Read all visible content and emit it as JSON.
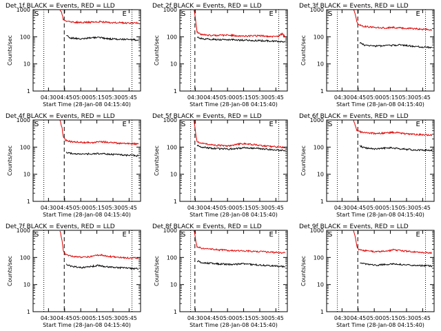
{
  "common": {
    "ylabel": "Counts/sec",
    "xlabel": "Start Time (28-Jan-08 04:15:40)",
    "x_ticks": [
      "04:30",
      "04:45",
      "05:00",
      "05:15",
      "05:30",
      "05:45"
    ],
    "y_ticks": [
      "1",
      "10",
      "100",
      "1000"
    ],
    "marker_start": "S",
    "marker_end": "E",
    "colors": {
      "events": "#000000",
      "lld": "#dd0000",
      "axes": "#000000"
    }
  },
  "chart_data": [
    {
      "type": "line",
      "title": "Det 1f BLACK = Events, RED = LLD",
      "x_unit": "minutes after 04:15:40",
      "xlim": [
        0,
        100
      ],
      "ylim": [
        1,
        1000
      ],
      "yscale": "log",
      "dotted_lines_x": [
        10,
        92
      ],
      "dashed_line_x": [
        29
      ],
      "series": [
        {
          "name": "Events",
          "color": "#000000",
          "x": [
            29,
            31,
            35,
            45,
            60,
            70,
            80,
            90,
            98
          ],
          "y": [
            null,
            110,
            90,
            85,
            95,
            85,
            80,
            80,
            75
          ]
        },
        {
          "name": "LLD",
          "color": "#dd0000",
          "x": [
            25,
            27,
            28,
            30,
            35,
            45,
            55,
            62,
            70,
            80,
            90,
            98
          ],
          "y": [
            1000,
            700,
            450,
            380,
            350,
            340,
            345,
            360,
            340,
            330,
            320,
            330
          ]
        }
      ]
    },
    {
      "type": "line",
      "title": "Det 2f BLACK = Events, RED = LLD",
      "x_unit": "minutes after 04:15:40",
      "xlim": [
        0,
        100
      ],
      "ylim": [
        1,
        1000
      ],
      "yscale": "log",
      "dotted_lines_x": [
        10,
        92
      ],
      "dashed_line_x": [
        14
      ],
      "series": [
        {
          "name": "Events",
          "color": "#000000",
          "x": [
            14,
            16,
            20,
            30,
            45,
            60,
            75,
            85,
            92,
            98
          ],
          "y": [
            null,
            100,
            85,
            80,
            78,
            75,
            72,
            70,
            68,
            65
          ]
        },
        {
          "name": "LLD",
          "color": "#dd0000",
          "x": [
            13,
            14,
            15,
            16,
            20,
            30,
            45,
            60,
            75,
            85,
            92,
            95,
            98
          ],
          "y": [
            1000,
            700,
            300,
            150,
            120,
            110,
            115,
            105,
            110,
            100,
            105,
            130,
            100
          ]
        }
      ]
    },
    {
      "type": "line",
      "title": "Det 3f BLACK = Events, RED = LLD",
      "x_unit": "minutes after 04:15:40",
      "xlim": [
        0,
        100
      ],
      "ylim": [
        1,
        1000
      ],
      "yscale": "log",
      "dotted_lines_x": [
        10,
        92
      ],
      "dashed_line_x": [
        29
      ],
      "series": [
        {
          "name": "Events",
          "color": "#000000",
          "x": [
            29,
            31,
            35,
            45,
            60,
            70,
            80,
            90,
            98
          ],
          "y": [
            null,
            60,
            50,
            45,
            48,
            50,
            45,
            42,
            40
          ]
        },
        {
          "name": "LLD",
          "color": "#dd0000",
          "x": [
            25,
            27,
            28,
            30,
            35,
            45,
            55,
            62,
            70,
            80,
            90,
            98
          ],
          "y": [
            1000,
            600,
            350,
            270,
            240,
            220,
            210,
            220,
            210,
            200,
            190,
            180
          ]
        }
      ]
    },
    {
      "type": "line",
      "title": "Det 4f BLACK = Events, RED = LLD",
      "x_unit": "minutes after 04:15:40",
      "xlim": [
        0,
        100
      ],
      "ylim": [
        1,
        1000
      ],
      "yscale": "log",
      "dotted_lines_x": [
        10,
        92
      ],
      "dashed_line_x": [
        29
      ],
      "series": [
        {
          "name": "Events",
          "color": "#000000",
          "x": [
            29,
            31,
            35,
            45,
            60,
            70,
            80,
            90,
            98
          ],
          "y": [
            null,
            65,
            60,
            55,
            58,
            55,
            52,
            50,
            48
          ]
        },
        {
          "name": "LLD",
          "color": "#dd0000",
          "x": [
            25,
            27,
            28,
            30,
            35,
            45,
            55,
            62,
            70,
            80,
            90,
            98
          ],
          "y": [
            1000,
            500,
            250,
            180,
            160,
            150,
            145,
            160,
            150,
            140,
            135,
            130
          ]
        }
      ]
    },
    {
      "type": "line",
      "title": "Det 5f BLACK = Events, RED = LLD",
      "x_unit": "minutes after 04:15:40",
      "xlim": [
        0,
        100
      ],
      "ylim": [
        1,
        1000
      ],
      "yscale": "log",
      "dotted_lines_x": [
        10,
        92
      ],
      "dashed_line_x": [
        14
      ],
      "series": [
        {
          "name": "Events",
          "color": "#000000",
          "x": [
            14,
            16,
            20,
            30,
            45,
            60,
            75,
            85,
            92,
            98
          ],
          "y": [
            null,
            120,
            100,
            90,
            85,
            95,
            88,
            80,
            78,
            75
          ]
        },
        {
          "name": "LLD",
          "color": "#dd0000",
          "x": [
            13,
            14,
            15,
            16,
            20,
            30,
            45,
            55,
            60,
            75,
            85,
            92,
            98
          ],
          "y": [
            1000,
            600,
            250,
            160,
            140,
            120,
            110,
            130,
            135,
            115,
            105,
            100,
            95
          ]
        }
      ]
    },
    {
      "type": "line",
      "title": "Det 6f BLACK = Events, RED = LLD",
      "x_unit": "minutes after 04:15:40",
      "xlim": [
        0,
        100
      ],
      "ylim": [
        1,
        1000
      ],
      "yscale": "log",
      "dotted_lines_x": [
        10,
        92
      ],
      "dashed_line_x": [
        29
      ],
      "series": [
        {
          "name": "Events",
          "color": "#000000",
          "x": [
            29,
            31,
            35,
            45,
            60,
            70,
            80,
            90,
            98
          ],
          "y": [
            null,
            110,
            95,
            85,
            95,
            85,
            80,
            78,
            75
          ]
        },
        {
          "name": "LLD",
          "color": "#dd0000",
          "x": [
            25,
            27,
            28,
            30,
            35,
            45,
            55,
            62,
            70,
            80,
            90,
            98
          ],
          "y": [
            1000,
            600,
            420,
            380,
            340,
            320,
            330,
            350,
            320,
            300,
            285,
            280
          ]
        }
      ]
    },
    {
      "type": "line",
      "title": "Det 7f BLACK = Events, RED = LLD",
      "x_unit": "minutes after 04:15:40",
      "xlim": [
        0,
        100
      ],
      "ylim": [
        1,
        1000
      ],
      "yscale": "log",
      "dotted_lines_x": [
        10,
        92
      ],
      "dashed_line_x": [
        29
      ],
      "series": [
        {
          "name": "Events",
          "color": "#000000",
          "x": [
            29,
            31,
            35,
            45,
            60,
            70,
            80,
            90,
            98
          ],
          "y": [
            null,
            55,
            48,
            42,
            50,
            45,
            42,
            40,
            38
          ]
        },
        {
          "name": "LLD",
          "color": "#dd0000",
          "x": [
            25,
            27,
            28,
            30,
            35,
            45,
            55,
            62,
            70,
            80,
            90,
            98
          ],
          "y": [
            1000,
            400,
            180,
            130,
            115,
            100,
            110,
            125,
            110,
            100,
            95,
            95
          ]
        }
      ]
    },
    {
      "type": "line",
      "title": "Det 8f BLACK = Events, RED = LLD",
      "x_unit": "minutes after 04:15:40",
      "xlim": [
        0,
        100
      ],
      "ylim": [
        1,
        1000
      ],
      "yscale": "log",
      "dotted_lines_x": [
        10,
        92
      ],
      "dashed_line_x": [
        14
      ],
      "series": [
        {
          "name": "Events",
          "color": "#000000",
          "x": [
            14,
            16,
            20,
            30,
            45,
            60,
            75,
            85,
            92,
            98
          ],
          "y": [
            null,
            75,
            65,
            60,
            55,
            58,
            52,
            50,
            48,
            45
          ]
        },
        {
          "name": "LLD",
          "color": "#dd0000",
          "x": [
            13,
            14,
            15,
            16,
            20,
            30,
            45,
            60,
            75,
            85,
            92,
            98
          ],
          "y": [
            1000,
            700,
            350,
            250,
            220,
            200,
            180,
            175,
            165,
            155,
            150,
            150
          ]
        }
      ]
    },
    {
      "type": "line",
      "title": "Det 9f BLACK = Events, RED = LLD",
      "x_unit": "minutes after 04:15:40",
      "xlim": [
        0,
        100
      ],
      "ylim": [
        1,
        1000
      ],
      "yscale": "log",
      "dotted_lines_x": [
        10,
        92
      ],
      "dashed_line_x": [
        29
      ],
      "series": [
        {
          "name": "Events",
          "color": "#000000",
          "x": [
            29,
            31,
            35,
            45,
            60,
            70,
            80,
            90,
            98
          ],
          "y": [
            null,
            65,
            58,
            52,
            58,
            55,
            52,
            50,
            48
          ]
        },
        {
          "name": "LLD",
          "color": "#dd0000",
          "x": [
            25,
            27,
            28,
            30,
            35,
            45,
            55,
            62,
            70,
            80,
            90,
            98
          ],
          "y": [
            1000,
            500,
            260,
            200,
            180,
            165,
            170,
            190,
            175,
            160,
            150,
            145
          ]
        }
      ]
    }
  ]
}
